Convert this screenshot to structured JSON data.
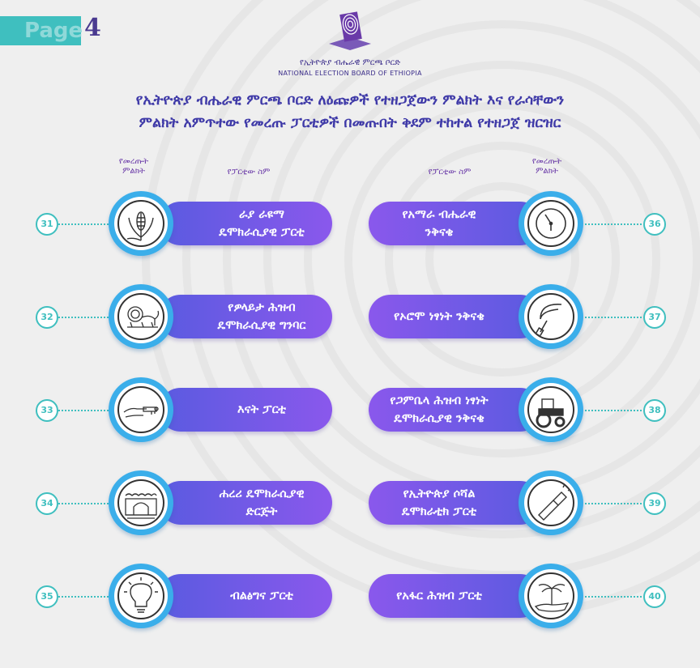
{
  "page": {
    "label": "Page",
    "number": "4"
  },
  "logo": {
    "amharic": "የኢትዮጵያ ብሔራዊ ምርጫ ቦርድ",
    "english": "NATIONAL ELECTION BOARD OF ETHIOPIA",
    "icon": "ballot-fingerprint-icon",
    "color": "#6a3aa8"
  },
  "title": {
    "line1": "የኢትዮጵያ ብሔራዊ ምርጫ ቦርድ ለዕጩዎች የተዘጋጀውን ምልክት እና የራሳቸውን",
    "line2": "ምልክት አምጥተው የመረጡ ፓርቲዎች በመጡበት ቅደም ተከተል የተዘጋጀ ዝርዝር"
  },
  "headers": {
    "left_symbol": "የመረጡት ምልክት",
    "left_party": "የፓርቲው ስም",
    "right_party": "የፓርቲው ስም",
    "right_symbol": "የመረጡት ምልክት"
  },
  "colors": {
    "accent": "#3fbfbf",
    "pill_start": "#5a5be0",
    "pill_end": "#8a58ec",
    "ring": "#3aaeea",
    "title": "#3f3aa8"
  },
  "left": [
    {
      "number": "31",
      "line1": "ራያ ራዩማ",
      "line2": "ዴሞክራሲያዊ ፓርቲ",
      "icon": "maize-icon"
    },
    {
      "number": "32",
      "line1": "የዎላይታ ሕዝብ",
      "line2": "ዴሞክራሲያዊ ግንባር",
      "icon": "lion-icon"
    },
    {
      "number": "33",
      "line1": "እናት ፓርቲ",
      "line2": "",
      "icon": "hand-key-icon"
    },
    {
      "number": "34",
      "line1": "ሐረሪ ዴሞክራሲያዊ",
      "line2": "ድርጅት",
      "icon": "gate-icon"
    },
    {
      "number": "35",
      "line1": "ብልፅግና ፓርቲ",
      "line2": "",
      "icon": "light-bulb-icon"
    }
  ],
  "right": [
    {
      "number": "36",
      "line1": "የአማራ ብሔራዊ",
      "line2": "ንቅናቄ",
      "icon": "clock-icon"
    },
    {
      "number": "37",
      "line1": "የኦሮሞ ነፃነት ንቅናቄ",
      "line2": "",
      "icon": "sickle-icon"
    },
    {
      "number": "38",
      "line1": "የጋምቤላ ሕዝብ ነፃነት",
      "line2": "ዴሞክራሲያዊ ንቅናቄ",
      "icon": "tractor-icon"
    },
    {
      "number": "39",
      "line1": "የኢትዮጵያ ሶሻል",
      "line2": "ዴሞክራቲክ ፓርቲ",
      "icon": "flashlight-icon"
    },
    {
      "number": "40",
      "line1": "የአፋር ሕዝብ ፓርቲ",
      "line2": "",
      "icon": "palm-hand-icon"
    }
  ]
}
